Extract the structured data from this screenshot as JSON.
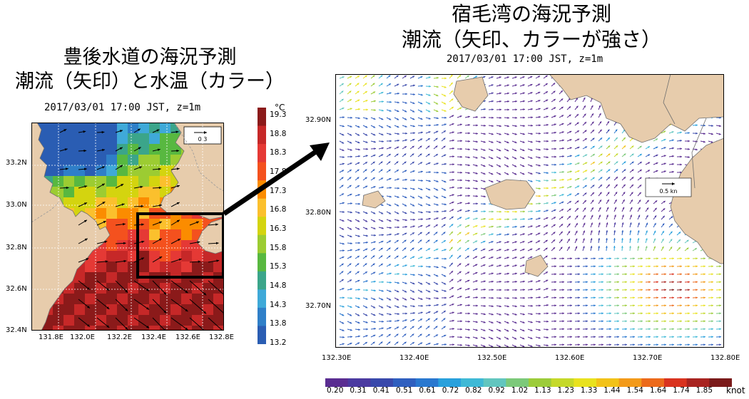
{
  "left_map": {
    "title_line1": "豊後水道の海況予測",
    "title_line2": "潮流（矢印）と水温（カラー）",
    "timestamp": "2017/03/01 17:00 JST, z=1m",
    "lat_labels": [
      "33.2N",
      "33.0N",
      "32.8N",
      "32.6N",
      "32.4N"
    ],
    "lon_labels": [
      "131.8E",
      "132.0E",
      "132.2E",
      "132.4E",
      "132.6E",
      "132.8E"
    ],
    "scale_label": "0.3",
    "colorbar_unit": "°C",
    "colorbar_labels": [
      "19.3",
      "18.8",
      "18.3",
      "17.8",
      "17.3",
      "16.8",
      "16.3",
      "15.8",
      "15.3",
      "14.8",
      "14.3",
      "13.8",
      "13.2"
    ],
    "colorbar_colors": [
      "#8b1a1a",
      "#c62828",
      "#e53935",
      "#f4511e",
      "#fb8c00",
      "#fbc02d",
      "#d4d40f",
      "#9ccc32",
      "#58b840",
      "#3ba58a",
      "#3fa9d8",
      "#2f7fc8",
      "#2a5db3"
    ]
  },
  "right_map": {
    "title_line1": "宿毛湾の海況予測",
    "title_line2": "潮流（矢印、カラーが強さ）",
    "timestamp": "2017/03/01 17:00 JST, z=1m",
    "lat_labels": [
      "32.90N",
      "32.80N",
      "32.70N"
    ],
    "lon_labels": [
      "132.30E",
      "132.40E",
      "132.50E",
      "132.60E",
      "132.70E",
      "132.80E"
    ],
    "scale_label": "0.5 kn",
    "colorbar_unit": "knot",
    "colorbar_labels": [
      "0.20",
      "0.31",
      "0.41",
      "0.51",
      "0.61",
      "0.72",
      "0.82",
      "0.92",
      "1.02",
      "1.13",
      "1.23",
      "1.33",
      "1.44",
      "1.54",
      "1.64",
      "1.74",
      "1.85"
    ],
    "colorbar_colors": [
      "#5a2d91",
      "#4b3aa0",
      "#3949ab",
      "#2f5fbf",
      "#2a78cf",
      "#29a0dc",
      "#3fb9d6",
      "#62c6bf",
      "#7cc97a",
      "#9ccc3a",
      "#c5d92a",
      "#e9e21f",
      "#f2c219",
      "#f39a1a",
      "#ec6a1b",
      "#d9331f",
      "#a82420",
      "#7a1a1a"
    ]
  },
  "colors": {
    "land": "#e7ccac",
    "coast": "#6f6f6f",
    "arrow_black": "#000000"
  }
}
